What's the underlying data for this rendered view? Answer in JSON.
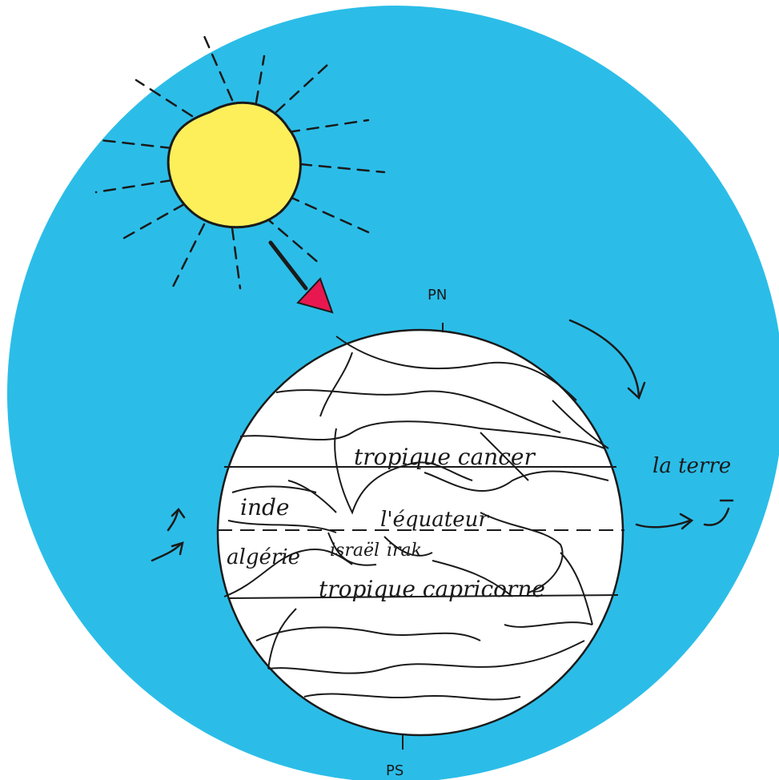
{
  "labels": {
    "north_pole": "PN",
    "south_pole": "PS",
    "earth": "la terre",
    "tropic_cancer": "tropique cancer",
    "tropic_capricorn": "tropique capricorne",
    "equator": "l'équateur",
    "country_india": "inde",
    "country_algeria": "algérie",
    "country_israel": "israël",
    "country_iraq": "irak"
  },
  "colors": {
    "sky": "#2bbde8",
    "sun": "#fcef5a",
    "arrow_head": "#e8174f",
    "ink": "#1a1a1a",
    "earth": "#ffffff"
  },
  "icons": {
    "sun": "sun-icon",
    "sunlight_arrow": "arrow-down-right-icon",
    "rotation_arrows": "curved-arrow-icon"
  }
}
